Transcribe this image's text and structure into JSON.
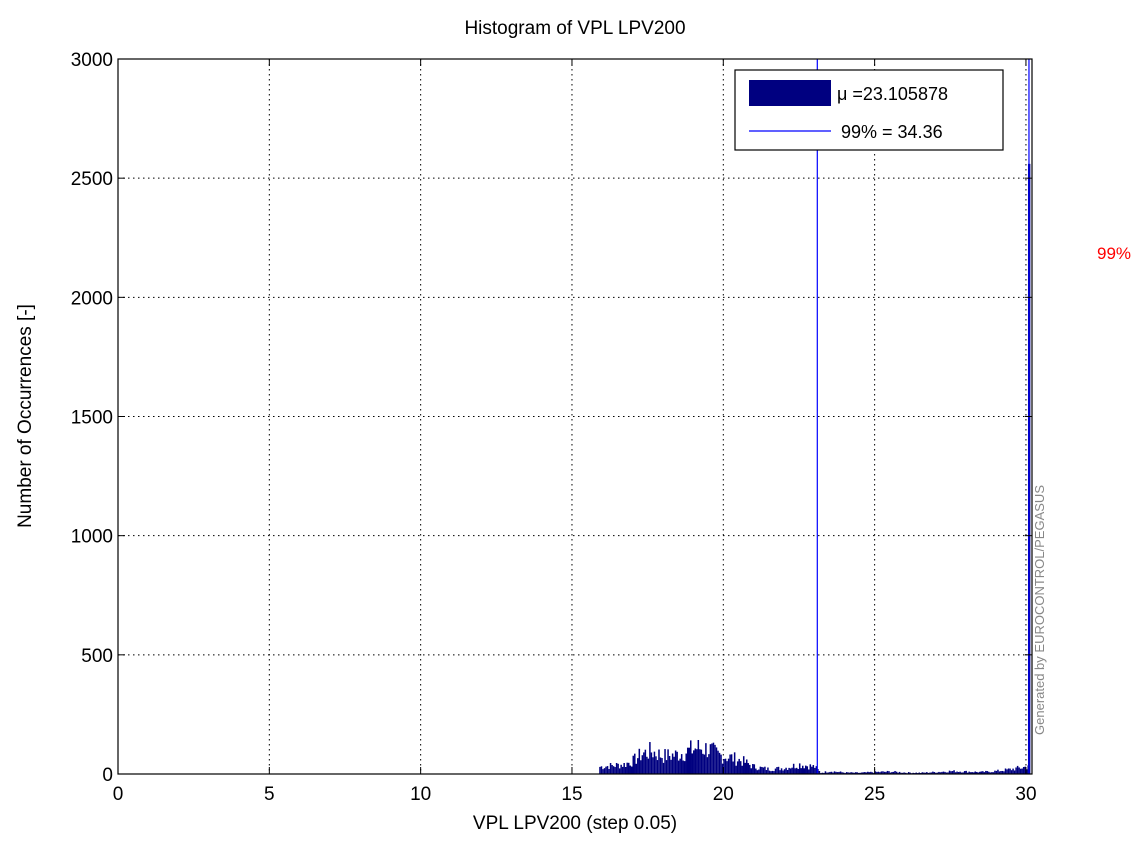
{
  "chart_data": {
    "type": "bar",
    "title": "Histogram of VPL LPV200",
    "xlabel": "VPL LPV200 (step 0.05)",
    "ylabel": "Number of Occurrences [-]",
    "xlim": [
      0,
      30.2
    ],
    "ylim": [
      0,
      3000
    ],
    "xticks": [
      0,
      5,
      10,
      15,
      20,
      25,
      30
    ],
    "yticks": [
      0,
      500,
      1000,
      1500,
      2000,
      2500,
      3000
    ],
    "grid": true,
    "bin_step": 0.05,
    "series": [
      {
        "name": "μ =23.105878",
        "color": "#000080",
        "profile_x": [
          15.9,
          16.3,
          16.7,
          17.0,
          17.3,
          17.6,
          18.0,
          18.4,
          18.8,
          19.1,
          19.5,
          19.8,
          20.2,
          20.6,
          21.0,
          21.5,
          22.0,
          22.5,
          23.0,
          23.2,
          23.5,
          24.0,
          24.5,
          25.0,
          25.5,
          26.0,
          26.5,
          27.0,
          27.5,
          28.0,
          28.5,
          29.0,
          29.5,
          30.0,
          30.05
        ],
        "profile_y": [
          30,
          35,
          40,
          55,
          85,
          95,
          75,
          80,
          95,
          110,
          105,
          80,
          70,
          55,
          30,
          20,
          25,
          40,
          30,
          5,
          12,
          6,
          5,
          8,
          10,
          6,
          5,
          8,
          12,
          10,
          8,
          12,
          20,
          30,
          40
        ],
        "spike": {
          "x": 30.1,
          "value": 2560
        }
      }
    ],
    "reference_lines": [
      {
        "name": "mean",
        "x": 23.105878,
        "color": "#0000ff"
      },
      {
        "name": "99% = 34.36",
        "x": 30.1,
        "color": "#0000ff"
      }
    ],
    "legend": {
      "position": "top-right",
      "entries": [
        "μ =23.105878",
        "99% = 34.36"
      ]
    },
    "annotations": {
      "watermark": "Generated by EUROCONTROL/PEGASUS",
      "outside_label": "99%"
    }
  }
}
